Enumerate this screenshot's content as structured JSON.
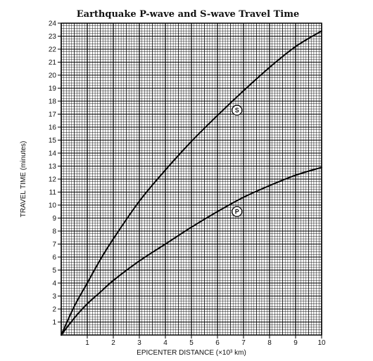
{
  "chart_data": {
    "type": "line",
    "title": "Earthquake P-wave and S-wave Travel Time",
    "xlabel": "EPICENTER DISTANCE (×10³ km)",
    "ylabel": "TRAVEL TIME (minutes)",
    "xlim": [
      0,
      10
    ],
    "ylim": [
      0,
      24
    ],
    "x_ticks": [
      "1",
      "2",
      "3",
      "4",
      "5",
      "6",
      "7",
      "8",
      "9",
      "10"
    ],
    "y_ticks": [
      "1",
      "2",
      "3",
      "4",
      "5",
      "6",
      "7",
      "8",
      "9",
      "10",
      "11",
      "12",
      "13",
      "14",
      "15",
      "16",
      "17",
      "18",
      "19",
      "20",
      "21",
      "22",
      "23",
      "24"
    ],
    "grid": true,
    "series": [
      {
        "name": "S",
        "x": [
          0,
          0.5,
          1,
          1.5,
          2,
          3,
          4,
          5,
          6,
          7,
          8,
          9,
          10
        ],
        "y": [
          0,
          2.2,
          4.0,
          5.8,
          7.4,
          10.3,
          12.7,
          14.9,
          16.9,
          18.8,
          20.6,
          22.2,
          23.4
        ]
      },
      {
        "name": "P",
        "x": [
          0,
          0.5,
          1,
          1.5,
          2,
          3,
          4,
          5,
          6,
          7,
          8,
          9,
          10
        ],
        "y": [
          0,
          1.3,
          2.4,
          3.3,
          4.2,
          5.7,
          7.0,
          8.3,
          9.5,
          10.6,
          11.5,
          12.3,
          12.9
        ]
      }
    ],
    "curve_labels": [
      {
        "text": "S",
        "x": 6.75,
        "y": 17.3
      },
      {
        "text": "P",
        "x": 6.75,
        "y": 9.5
      }
    ]
  }
}
